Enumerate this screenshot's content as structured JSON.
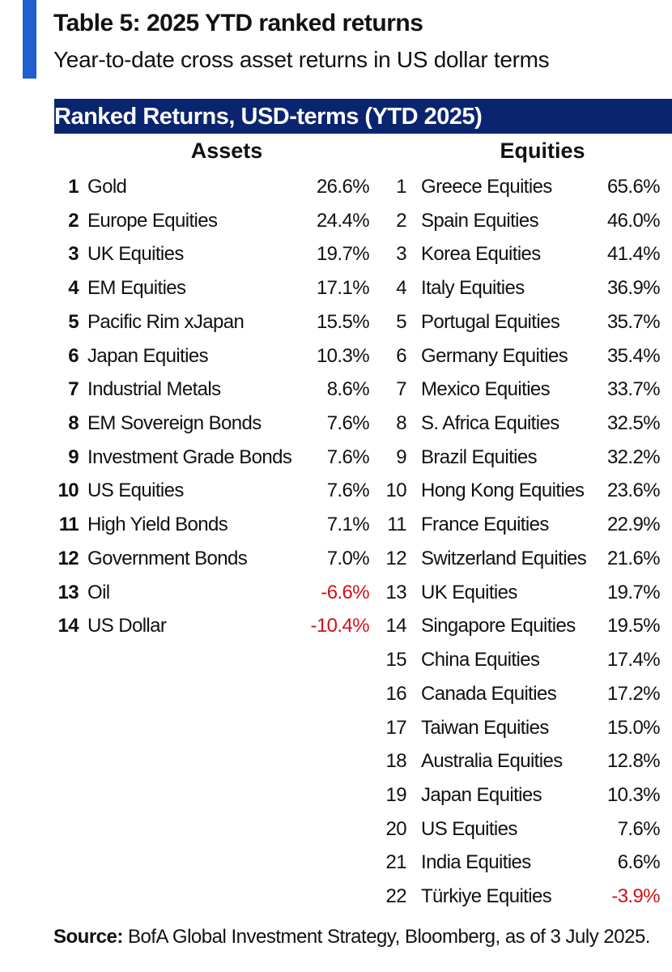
{
  "header": {
    "title": "Table 5: 2025 YTD ranked returns",
    "subtitle": "Year-to-date cross asset returns in US dollar terms"
  },
  "table": {
    "banner": "Ranked Returns, USD-terms (YTD 2025)",
    "assets": {
      "heading": "Assets",
      "rows": [
        [
          1,
          "Gold",
          "26.6%"
        ],
        [
          2,
          "Europe Equities",
          "24.4%"
        ],
        [
          3,
          "UK Equities",
          "19.7%"
        ],
        [
          4,
          "EM Equities",
          "17.1%"
        ],
        [
          5,
          "Pacific Rim xJapan",
          "15.5%"
        ],
        [
          6,
          "Japan Equities",
          "10.3%"
        ],
        [
          7,
          "Industrial Metals",
          "8.6%"
        ],
        [
          8,
          "EM Sovereign Bonds",
          "7.6%"
        ],
        [
          9,
          "Investment Grade Bonds",
          "7.6%"
        ],
        [
          10,
          "US Equities",
          "7.6%"
        ],
        [
          11,
          "High Yield Bonds",
          "7.1%"
        ],
        [
          12,
          "Government Bonds",
          "7.0%"
        ],
        [
          13,
          "Oil",
          "-6.6%"
        ],
        [
          14,
          "US Dollar",
          "-10.4%"
        ]
      ]
    },
    "equities": {
      "heading": "Equities",
      "rows": [
        [
          1,
          "Greece Equities",
          "65.6%"
        ],
        [
          2,
          "Spain Equities",
          "46.0%"
        ],
        [
          3,
          "Korea Equities",
          "41.4%"
        ],
        [
          4,
          "Italy Equities",
          "36.9%"
        ],
        [
          5,
          "Portugal Equities",
          "35.7%"
        ],
        [
          6,
          "Germany Equities",
          "35.4%"
        ],
        [
          7,
          "Mexico Equities",
          "33.7%"
        ],
        [
          8,
          "S. Africa Equities",
          "32.5%"
        ],
        [
          9,
          "Brazil Equities",
          "32.2%"
        ],
        [
          10,
          "Hong Kong Equities",
          "23.6%"
        ],
        [
          11,
          "France Equities",
          "22.9%"
        ],
        [
          12,
          "Switzerland Equities",
          "21.6%"
        ],
        [
          13,
          "UK Equities",
          "19.7%"
        ],
        [
          14,
          "Singapore Equities",
          "19.5%"
        ],
        [
          15,
          "China Equities",
          "17.4%"
        ],
        [
          16,
          "Canada Equities",
          "17.2%"
        ],
        [
          17,
          "Taiwan Equities",
          "15.0%"
        ],
        [
          18,
          "Australia Equities",
          "12.8%"
        ],
        [
          19,
          "Japan Equities",
          "10.3%"
        ],
        [
          20,
          "US Equities",
          "7.6%"
        ],
        [
          21,
          "India Equities",
          "6.6%"
        ],
        [
          22,
          "Türkiye Equities",
          "-3.9%"
        ]
      ]
    }
  },
  "footer": {
    "source_label": "Source:",
    "source_text": "BofA Global Investment Strategy, Bloomberg, as of 3 July 2025."
  }
}
